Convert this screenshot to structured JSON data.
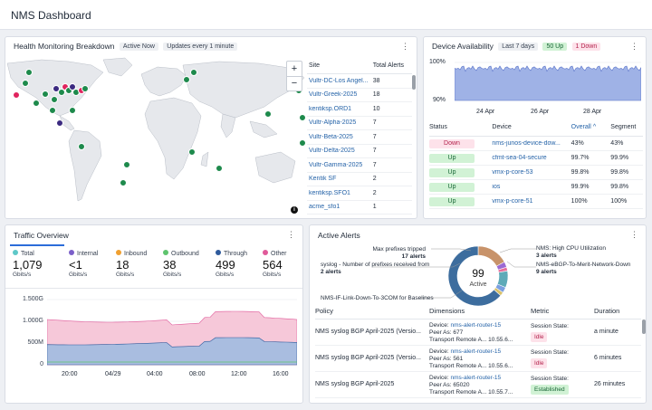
{
  "app": {
    "title": "NMS Dashboard"
  },
  "health": {
    "title": "Health Monitoring Breakdown",
    "badge_active": "Active Now",
    "badge_updates": "Updates every 1 minute",
    "zoom_in": "+",
    "zoom_out": "−",
    "info": "i",
    "col_site": "Site",
    "col_alerts": "Total Alerts",
    "rows": [
      {
        "site": "Vultr-DC-Los Angel...",
        "alerts": "38"
      },
      {
        "site": "Vultr-Greek-2025",
        "alerts": "18"
      },
      {
        "site": "kentiksp.ORD1",
        "alerts": "10"
      },
      {
        "site": "Vultr-Alpha-2025",
        "alerts": "7"
      },
      {
        "site": "Vultr-Beta-2025",
        "alerts": "7"
      },
      {
        "site": "Vultr-Delta-2025",
        "alerts": "7"
      },
      {
        "site": "Vultr-Gamma-2025",
        "alerts": "7"
      },
      {
        "site": "Kentik SF",
        "alerts": "2"
      },
      {
        "site": "kentiksp.SFO1",
        "alerts": "2"
      },
      {
        "site": "acme_sfo1",
        "alerts": "1"
      }
    ],
    "marker_colors": {
      "green": "#1e8a4c",
      "red": "#e0245e",
      "purple": "#3b2a80"
    }
  },
  "device": {
    "title": "Device Availability",
    "badge_days": "Last 7 days",
    "badge_up": "50 Up",
    "badge_down": "1 Down",
    "y_top": "100%",
    "y_bottom": "90%",
    "x_labels": [
      "24 Apr",
      "26 Apr",
      "28 Apr"
    ],
    "col_status": "Status",
    "col_device": "Device",
    "col_overall": "Overall",
    "col_segment": "Segment",
    "rows": [
      {
        "status": "Down",
        "device": "nms-junos-device-dow...",
        "overall": "43%",
        "segment": "43%"
      },
      {
        "status": "Up",
        "device": "cfmt-sea-04-secure",
        "overall": "99.7%",
        "segment": "99.9%"
      },
      {
        "status": "Up",
        "device": "vmx-p-core-53",
        "overall": "99.8%",
        "segment": "99.8%"
      },
      {
        "status": "Up",
        "device": "ios",
        "overall": "99.9%",
        "segment": "99.8%"
      },
      {
        "status": "Up",
        "device": "vmx-p-core-51",
        "overall": "100%",
        "segment": "100%"
      }
    ]
  },
  "traffic": {
    "title": "Traffic Overview",
    "metrics": [
      {
        "label": "Total",
        "value": "1,079",
        "unit": "Gbits/s",
        "color": "#5ec8c8"
      },
      {
        "label": "Internal",
        "value": "<1",
        "unit": "Gbits/s",
        "color": "#7b5fc9"
      },
      {
        "label": "Inbound",
        "value": "18",
        "unit": "Gbits/s",
        "color": "#f0a030"
      },
      {
        "label": "Outbound",
        "value": "38",
        "unit": "Gbits/s",
        "color": "#5ec46e"
      },
      {
        "label": "Through",
        "value": "499",
        "unit": "Gbits/s",
        "color": "#2e5a9c"
      },
      {
        "label": "Other",
        "value": "564",
        "unit": "Gbits/s",
        "color": "#e05a9a"
      }
    ],
    "y_labels": [
      "1.500G",
      "1.000G",
      "500M",
      "0"
    ],
    "x_labels": [
      "20:00",
      "04/29",
      "04:00",
      "08:00",
      "12:00",
      "16:00"
    ]
  },
  "alerts": {
    "title": "Active Alerts",
    "donut_total": "99",
    "donut_label": "Active",
    "callouts": [
      {
        "text": "Max prefixes tripped",
        "count": "17 alerts"
      },
      {
        "text": "syslog - Number of prefixes received from",
        "count": "2 alerts"
      },
      {
        "text": "NMS-IF-Link-Down-To-3COM for Baselines",
        "count": ""
      },
      {
        "text": "NMS: High CPU Utilization",
        "count": "3 alerts"
      },
      {
        "text": "NMS-eBGP-To-Merit-Network-Down",
        "count": "9 alerts"
      }
    ],
    "col_policy": "Policy",
    "col_dimensions": "Dimensions",
    "col_metric": "Metric",
    "col_duration": "Duration",
    "rows": [
      {
        "policy": "NMS syslog BGP April-2025 (Versio...",
        "device_label": "Device:",
        "device": "nms-alert-router-15",
        "peer_label": "Peer As:",
        "peer": "677",
        "transport_label": "Transport Remote A...",
        "transport": "10.55.6...",
        "metric_label": "Session State:",
        "state": "Idle",
        "duration": "a minute"
      },
      {
        "policy": "NMS syslog BGP April-2025 (Versio...",
        "device_label": "Device:",
        "device": "nms-alert-router-15",
        "peer_label": "Peer As:",
        "peer": "561",
        "transport_label": "Transport Remote A...",
        "transport": "10.55.6...",
        "metric_label": "Session State:",
        "state": "Idle",
        "duration": "6 minutes"
      },
      {
        "policy": "NMS syslog BGP April-2025",
        "device_label": "Device:",
        "device": "nms-alert-router-15",
        "peer_label": "Peer As:",
        "peer": "65020",
        "transport_label": "Transport Remote A...",
        "transport": "10.55.7...",
        "metric_label": "Session State:",
        "state": "Established",
        "duration": "26 minutes"
      }
    ]
  }
}
